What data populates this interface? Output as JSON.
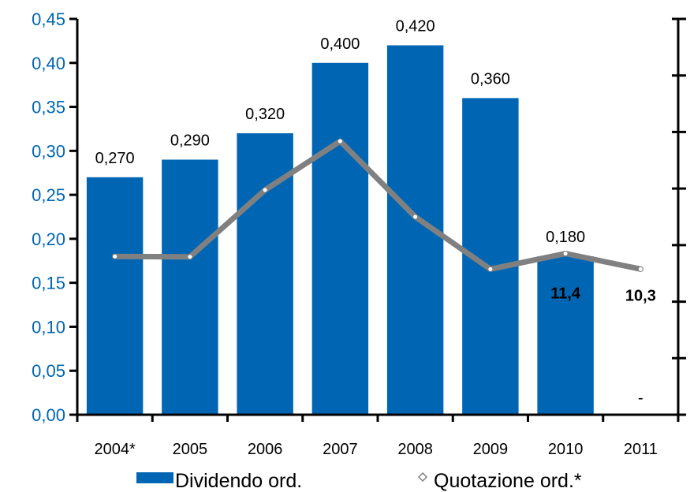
{
  "chart_data": {
    "type": "bar",
    "categories": [
      "2004*",
      "2005",
      "2006",
      "2007",
      "2008",
      "2009",
      "2010",
      "2011"
    ],
    "series": [
      {
        "name": "Dividendo ord.",
        "kind": "bar",
        "color": "#0066b3",
        "values": [
          0.27,
          0.29,
          0.32,
          0.4,
          0.42,
          0.36,
          0.18,
          0
        ],
        "data_labels": [
          "0,270",
          "0,290",
          "0,320",
          "0,400",
          "0,420",
          "0,360",
          "0,180",
          "-"
        ]
      },
      {
        "name": "Quotazione ord.*",
        "kind": "line",
        "axis": "secondary",
        "color": "#808080",
        "values": [
          11.2,
          11.17,
          15.9,
          19.35,
          14.0,
          10.3,
          11.4,
          10.3
        ],
        "data_labels": [
          null,
          null,
          null,
          null,
          null,
          null,
          "11,4",
          "10,3"
        ]
      }
    ],
    "y_ticks": [
      "0,00",
      "0,05",
      "0,10",
      "0,15",
      "0,20",
      "0,25",
      "0,30",
      "0,35",
      "0,40",
      "0,45"
    ],
    "ylim": [
      0,
      0.45
    ],
    "y2lim": [
      0,
      28
    ],
    "grid": false,
    "legend": "bottom",
    "xlabel": "",
    "ylabel": ""
  }
}
